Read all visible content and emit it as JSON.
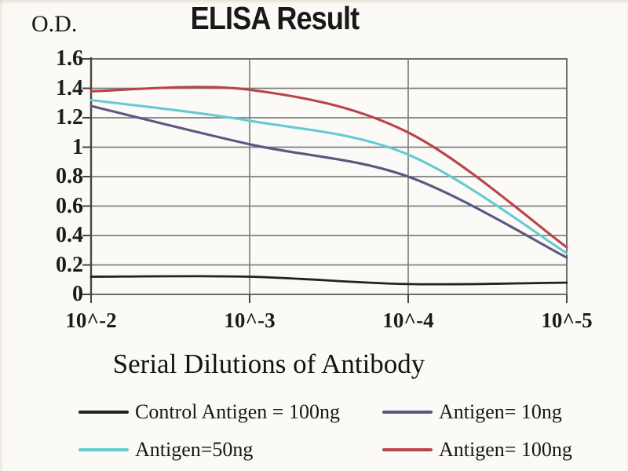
{
  "chart_data": {
    "type": "line",
    "title": "ELISA Result",
    "ylabel": "O.D.",
    "xlabel": "Serial Dilutions of Antibody",
    "categories": [
      "10^-2",
      "10^-3",
      "10^-4",
      "10^-5"
    ],
    "x_tick_labels": [
      "10^-2",
      "10^-3",
      "10^-4",
      "10^-5"
    ],
    "y_tick_labels": [
      "0",
      "0.2",
      "0.4",
      "0.6",
      "0.8",
      "1",
      "1.2",
      "1.4",
      "1.6"
    ],
    "ylim": [
      0,
      1.6
    ],
    "grid": true,
    "legend_position": "bottom",
    "colors": {
      "grid": "#7f7f7f",
      "border": "#6e6e6e",
      "axis": "#454545",
      "text": "#1c1c1c"
    },
    "series": [
      {
        "name": "Control Antigen = 100ng",
        "color": "#212121",
        "values": [
          0.12,
          0.12,
          0.07,
          0.08
        ]
      },
      {
        "name": "Antigen= 10ng",
        "color": "#5e5680",
        "values": [
          1.28,
          1.02,
          0.8,
          0.25
        ]
      },
      {
        "name": "Antigen=50ng",
        "color": "#63cbd2",
        "values": [
          1.32,
          1.18,
          0.95,
          0.28
        ]
      },
      {
        "name": "Antigen= 100ng",
        "color": "#b8434a",
        "values": [
          1.38,
          1.39,
          1.1,
          0.32
        ]
      }
    ]
  }
}
